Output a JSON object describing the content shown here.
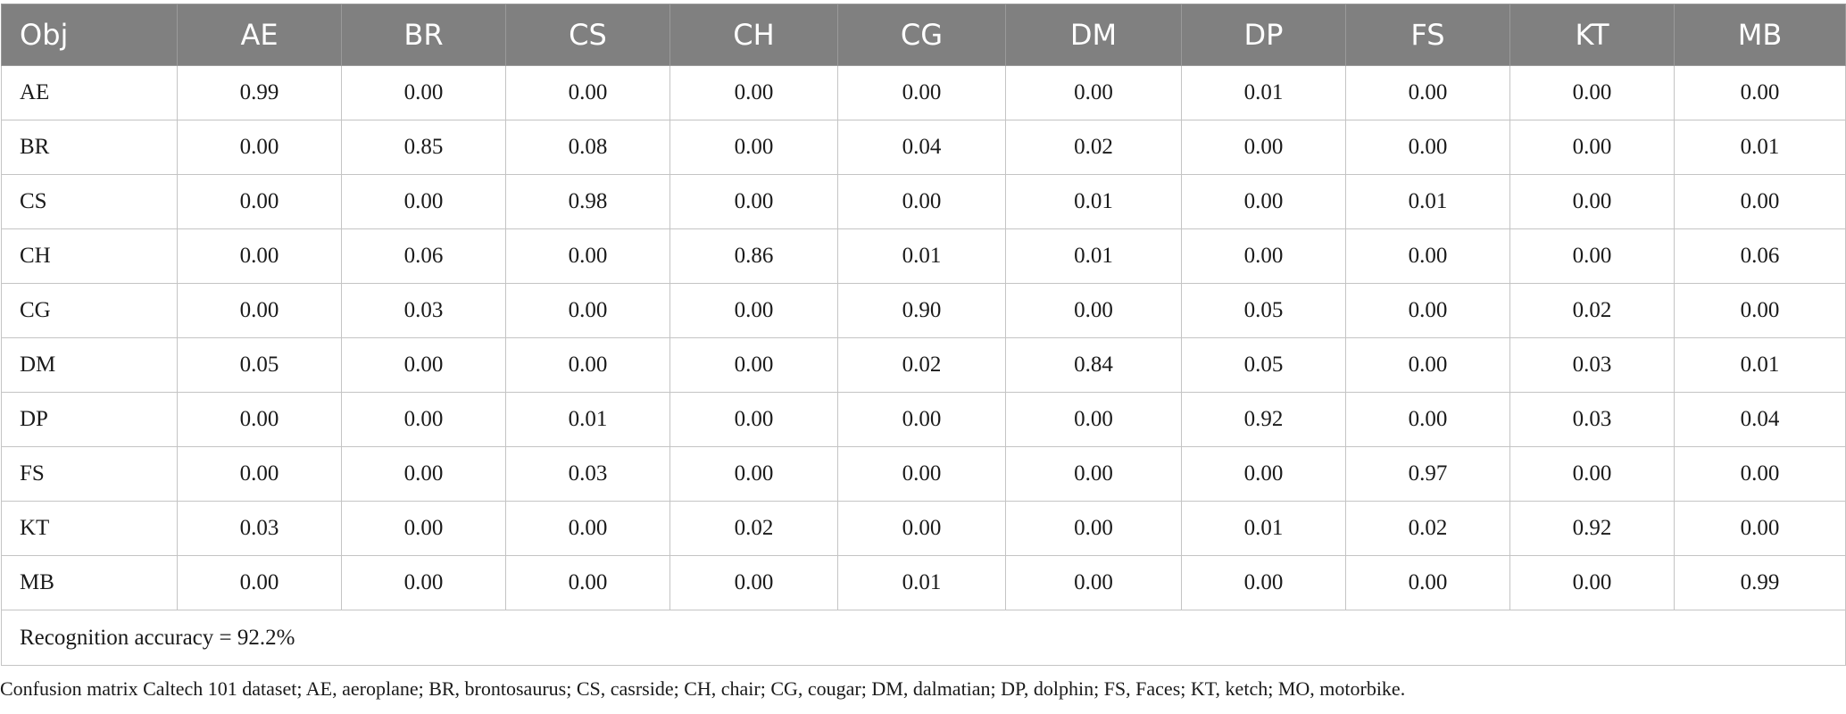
{
  "table": {
    "columns": [
      "Obj",
      "AE",
      "BR",
      "CS",
      "CH",
      "CG",
      "DM",
      "DP",
      "FS",
      "KT",
      "MB"
    ],
    "rows": [
      {
        "label": "AE",
        "values": [
          "0.99",
          "0.00",
          "0.00",
          "0.00",
          "0.00",
          "0.00",
          "0.01",
          "0.00",
          "0.00",
          "0.00"
        ]
      },
      {
        "label": "BR",
        "values": [
          "0.00",
          "0.85",
          "0.08",
          "0.00",
          "0.04",
          "0.02",
          "0.00",
          "0.00",
          "0.00",
          "0.01"
        ]
      },
      {
        "label": "CS",
        "values": [
          "0.00",
          "0.00",
          "0.98",
          "0.00",
          "0.00",
          "0.01",
          "0.00",
          "0.01",
          "0.00",
          "0.00"
        ]
      },
      {
        "label": "CH",
        "values": [
          "0.00",
          "0.06",
          "0.00",
          "0.86",
          "0.01",
          "0.01",
          "0.00",
          "0.00",
          "0.00",
          "0.06"
        ]
      },
      {
        "label": "CG",
        "values": [
          "0.00",
          "0.03",
          "0.00",
          "0.00",
          "0.90",
          "0.00",
          "0.05",
          "0.00",
          "0.02",
          "0.00"
        ]
      },
      {
        "label": "DM",
        "values": [
          "0.05",
          "0.00",
          "0.00",
          "0.00",
          "0.02",
          "0.84",
          "0.05",
          "0.00",
          "0.03",
          "0.01"
        ]
      },
      {
        "label": "DP",
        "values": [
          "0.00",
          "0.00",
          "0.01",
          "0.00",
          "0.00",
          "0.00",
          "0.92",
          "0.00",
          "0.03",
          "0.04"
        ]
      },
      {
        "label": "FS",
        "values": [
          "0.00",
          "0.00",
          "0.03",
          "0.00",
          "0.00",
          "0.00",
          "0.00",
          "0.97",
          "0.00",
          "0.00"
        ]
      },
      {
        "label": "KT",
        "values": [
          "0.03",
          "0.00",
          "0.00",
          "0.02",
          "0.00",
          "0.00",
          "0.01",
          "0.02",
          "0.92",
          "0.00"
        ]
      },
      {
        "label": "MB",
        "values": [
          "0.00",
          "0.00",
          "0.00",
          "0.00",
          "0.01",
          "0.00",
          "0.00",
          "0.00",
          "0.00",
          "0.99"
        ]
      }
    ],
    "summary": "Recognition accuracy = 92.2%"
  },
  "footnote": "Confusion matrix Caltech 101 dataset; AE, aeroplane; BR, brontosaurus; CS, casrside; CH, chair; CG, cougar; DM, dalmatian; DP, dolphin; FS, Faces; KT, ketch; MO, motorbike.",
  "colors": {
    "header_background": "#808080",
    "header_text": "#ffffff",
    "border": "#c4c4c4"
  }
}
